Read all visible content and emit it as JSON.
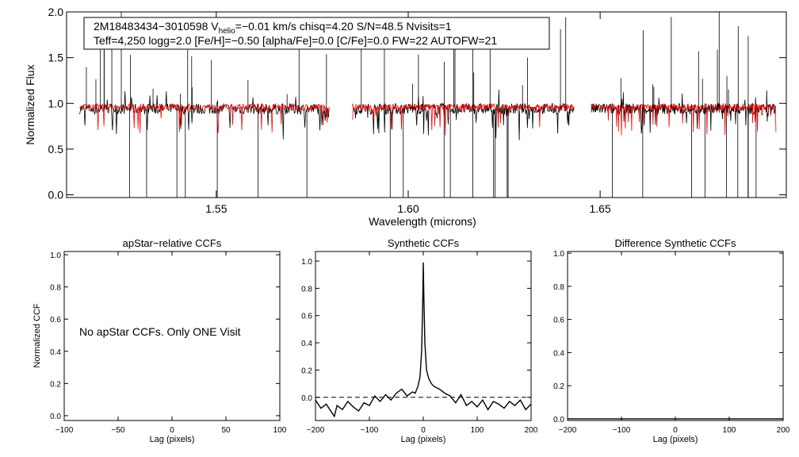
{
  "chart_data": [
    {
      "type": "line",
      "name": "spectrum",
      "xlabel": "Wavelength (microns)",
      "ylabel": "Normalized Flux",
      "xlim": [
        1.511,
        1.6985
      ],
      "ylim": [
        -0.03,
        2.0
      ],
      "xticks": [
        {
          "value": 1.55,
          "label": "1.55"
        },
        {
          "value": 1.6,
          "label": "1.60"
        },
        {
          "value": 1.65,
          "label": "1.65"
        }
      ],
      "yticks": [
        {
          "value": 0.0,
          "label": "0.0"
        },
        {
          "value": 0.5,
          "label": "0.5"
        },
        {
          "value": 1.0,
          "label": "1.0"
        },
        {
          "value": 1.5,
          "label": "1.5"
        },
        {
          "value": 2.0,
          "label": "2.0"
        }
      ],
      "chips": [
        [
          1.5144,
          1.5794
        ],
        [
          1.5855,
          1.6432
        ],
        [
          1.6477,
          1.6958
        ]
      ],
      "series": [
        {
          "name": "Observed spectrum",
          "color": "#000000",
          "level": 0.94
        },
        {
          "name": "Synthetic best-fit",
          "color": "#ff0000",
          "level": 0.96
        }
      ],
      "info_line1_a": "2M18483434−3010598  V",
      "info_line1_sub": "helio",
      "info_line1_b": "=−0.01 km/s  chisq=4.20  S/N=48.5  Nvisits=1",
      "info_line2": "Teff=4,250 logg=2.0 [Fe/H]=−0.50 [alpha/Fe]=0.0 [C/Fe]=0.0 FW=22 AUTOFW=21"
    },
    {
      "type": "line",
      "name": "apstar-ccf",
      "title": "apStar−relative CCFs",
      "xlabel": "Lag (pixels)",
      "ylabel": "Normalized CCF",
      "xlim": [
        -100,
        100
      ],
      "ylim": [
        -0.03,
        1.02
      ],
      "xticks": [
        {
          "value": -100,
          "label": "−100"
        },
        {
          "value": -50,
          "label": "−50"
        },
        {
          "value": 0,
          "label": "0"
        },
        {
          "value": 50,
          "label": "50"
        },
        {
          "value": 100,
          "label": "100"
        }
      ],
      "yticks": [
        {
          "value": 0.0,
          "label": "0.0"
        },
        {
          "value": 0.2,
          "label": "0.2"
        },
        {
          "value": 0.4,
          "label": "0.4"
        },
        {
          "value": 0.6,
          "label": "0.6"
        },
        {
          "value": 0.8,
          "label": "0.8"
        },
        {
          "value": 1.0,
          "label": "1.0"
        }
      ],
      "annotation": "No apStar CCFs.  Only ONE Visit",
      "series": []
    },
    {
      "type": "line",
      "name": "synthetic-ccf",
      "title": "Synthetic CCFs",
      "xlabel": "Lag (pixels)",
      "xlim": [
        -200,
        200
      ],
      "ylim": [
        -0.17,
        1.07
      ],
      "zero_line": 0.0,
      "xticks": [
        {
          "value": -200,
          "label": "−200"
        },
        {
          "value": -100,
          "label": "−100"
        },
        {
          "value": 0,
          "label": "0"
        },
        {
          "value": 100,
          "label": "100"
        },
        {
          "value": 200,
          "label": "200"
        }
      ],
      "yticks": [
        {
          "value": 0.0,
          "label": "0.0"
        },
        {
          "value": 0.2,
          "label": "0.2"
        },
        {
          "value": 0.4,
          "label": "0.4"
        },
        {
          "value": 0.6,
          "label": "0.6"
        },
        {
          "value": 0.8,
          "label": "0.8"
        },
        {
          "value": 1.0,
          "label": "1.0"
        }
      ],
      "series": [
        {
          "name": "Synthetic CCF",
          "color": "#000000",
          "x": [
            -200,
            -190,
            -180,
            -170,
            -165,
            -160,
            -150,
            -140,
            -130,
            -120,
            -110,
            -100,
            -90,
            -80,
            -70,
            -60,
            -50,
            -40,
            -30,
            -20,
            -15,
            -10,
            -6,
            -3,
            -1,
            0,
            1,
            3,
            6,
            10,
            15,
            20,
            30,
            40,
            50,
            60,
            70,
            80,
            90,
            100,
            110,
            120,
            130,
            140,
            150,
            160,
            170,
            180,
            190,
            200
          ],
          "y": [
            -0.02,
            -0.08,
            -0.05,
            -0.11,
            -0.14,
            -0.06,
            -0.09,
            -0.03,
            -0.07,
            -0.1,
            -0.04,
            -0.06,
            0.01,
            -0.03,
            0.02,
            -0.02,
            0.03,
            0.06,
            0.01,
            0.04,
            0.03,
            0.08,
            0.15,
            0.35,
            0.7,
            0.99,
            0.75,
            0.4,
            0.2,
            0.14,
            0.1,
            0.08,
            0.06,
            0.03,
            0.01,
            -0.04,
            0.02,
            -0.06,
            -0.03,
            -0.07,
            -0.02,
            -0.09,
            -0.03,
            -0.05,
            -0.08,
            -0.03,
            -0.06,
            -0.02,
            -0.09,
            -0.05
          ]
        }
      ]
    },
    {
      "type": "line",
      "name": "difference-ccf",
      "title": "Difference Synthetic CCFs",
      "xlabel": "Lag (pixels)",
      "xlim": [
        -200,
        200
      ],
      "ylim": [
        -0.01,
        1.01
      ],
      "xticks": [
        {
          "value": -200,
          "label": "−200"
        },
        {
          "value": -100,
          "label": "−100"
        },
        {
          "value": 0,
          "label": "0"
        },
        {
          "value": 100,
          "label": "100"
        },
        {
          "value": 200,
          "label": "200"
        }
      ],
      "yticks": [
        {
          "value": 0.0,
          "label": "0.0"
        },
        {
          "value": 0.2,
          "label": "0.2"
        },
        {
          "value": 0.4,
          "label": "0.4"
        },
        {
          "value": 0.6,
          "label": "0.6"
        },
        {
          "value": 0.8,
          "label": "0.8"
        },
        {
          "value": 1.0,
          "label": "1.0"
        }
      ],
      "series": [
        {
          "name": "Difference CCF",
          "color": "#000000",
          "x": [
            -200,
            200
          ],
          "y": [
            0.0,
            0.0
          ]
        }
      ]
    }
  ]
}
